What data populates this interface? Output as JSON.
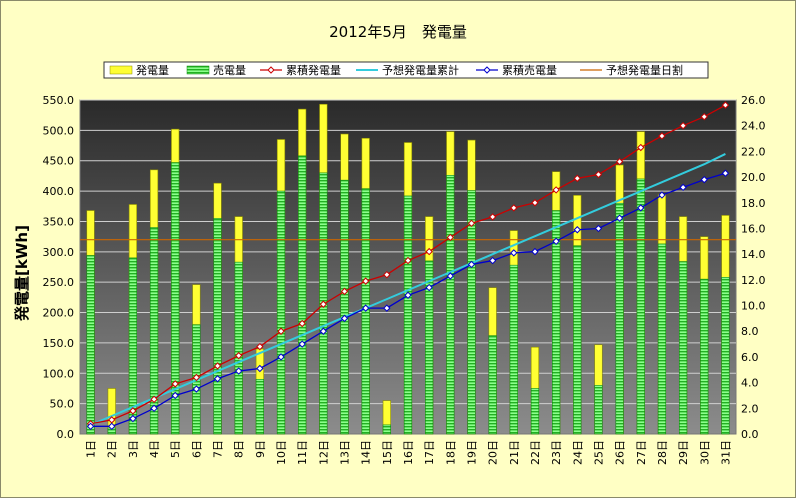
{
  "chart_data": {
    "type": "bar",
    "title": "2012年5月　発電量",
    "ylabel": "発電量[kWh]",
    "y2label": "",
    "ylim": [
      0,
      550
    ],
    "yticks": [
      "0.0",
      "50.0",
      "100.0",
      "150.0",
      "200.0",
      "250.0",
      "300.0",
      "350.0",
      "400.0",
      "450.0",
      "500.0",
      "550.0"
    ],
    "y2lim": [
      0,
      26
    ],
    "y2ticks": [
      "0.0",
      "2.0",
      "4.0",
      "6.0",
      "8.0",
      "10.0",
      "12.0",
      "14.0",
      "16.0",
      "18.0",
      "20.0",
      "22.0",
      "24.0",
      "26.0"
    ],
    "grid": true,
    "legend_position": "top",
    "categories": [
      "1日",
      "2日",
      "3日",
      "4日",
      "5日",
      "6日",
      "7日",
      "8日",
      "9日",
      "10日",
      "11日",
      "12日",
      "13日",
      "14日",
      "15日",
      "16日",
      "17日",
      "18日",
      "19日",
      "20日",
      "21日",
      "22日",
      "23日",
      "24日",
      "25日",
      "26日",
      "27日",
      "28日",
      "29日",
      "30日",
      "31日"
    ],
    "series": [
      {
        "name": "発電量",
        "type": "bar",
        "axis": "left",
        "color": "#ffff33",
        "values": [
          368,
          75,
          378,
          435,
          502,
          246,
          413,
          358,
          140,
          485,
          535,
          543,
          494,
          487,
          55,
          480,
          358,
          498,
          484,
          241,
          335,
          143,
          432,
          393,
          147,
          443,
          498,
          395,
          358,
          325,
          360
        ]
      },
      {
        "name": "売電量",
        "type": "bar",
        "axis": "left",
        "color": "#33cc33",
        "values": [
          294,
          10,
          290,
          340,
          447,
          180,
          355,
          283,
          90,
          400,
          458,
          430,
          418,
          404,
          15,
          392,
          285,
          426,
          401,
          162,
          278,
          75,
          368,
          310,
          80,
          380,
          420,
          313,
          284,
          255,
          258
        ]
      },
      {
        "name": "累積発電量",
        "type": "line",
        "axis": "right",
        "color": "#cc0000",
        "values": [
          0.8,
          1.1,
          1.8,
          2.7,
          3.9,
          4.4,
          5.3,
          6.1,
          6.8,
          8.0,
          8.6,
          10.1,
          11.1,
          11.9,
          12.4,
          13.5,
          14.2,
          15.3,
          16.4,
          16.9,
          17.6,
          18.0,
          19.0,
          19.9,
          20.2,
          21.2,
          22.3,
          23.2,
          24.0,
          24.7,
          25.6
        ]
      },
      {
        "name": "予想発電量累計",
        "type": "line",
        "axis": "right",
        "color": "#33ccdd",
        "values": [
          0.7,
          1.4,
          2.1,
          2.8,
          3.5,
          4.2,
          4.9,
          5.6,
          6.3,
          7.0,
          7.7,
          8.4,
          9.1,
          9.8,
          10.5,
          11.2,
          11.9,
          12.6,
          13.3,
          14.0,
          14.7,
          15.4,
          16.1,
          16.8,
          17.5,
          18.2,
          18.9,
          19.6,
          20.3,
          21.0,
          21.8
        ]
      },
      {
        "name": "累積売電量",
        "type": "line",
        "axis": "right",
        "color": "#0000cc",
        "values": [
          0.6,
          0.6,
          1.2,
          2.0,
          3.0,
          3.5,
          4.3,
          4.9,
          5.1,
          6.0,
          7.0,
          8.0,
          9.0,
          9.8,
          9.8,
          10.8,
          11.4,
          12.3,
          13.2,
          13.5,
          14.1,
          14.2,
          15.0,
          15.9,
          16.0,
          16.8,
          17.6,
          18.6,
          19.2,
          19.8,
          20.3
        ]
      },
      {
        "name": "予想発電量日割",
        "type": "line",
        "axis": "left",
        "color": "#cc6600",
        "values": [
          320,
          320,
          320,
          320,
          320,
          320,
          320,
          320,
          320,
          320,
          320,
          320,
          320,
          320,
          320,
          320,
          320,
          320,
          320,
          320,
          320,
          320,
          320,
          320,
          320,
          320,
          320,
          320,
          320,
          320,
          320
        ]
      }
    ]
  }
}
